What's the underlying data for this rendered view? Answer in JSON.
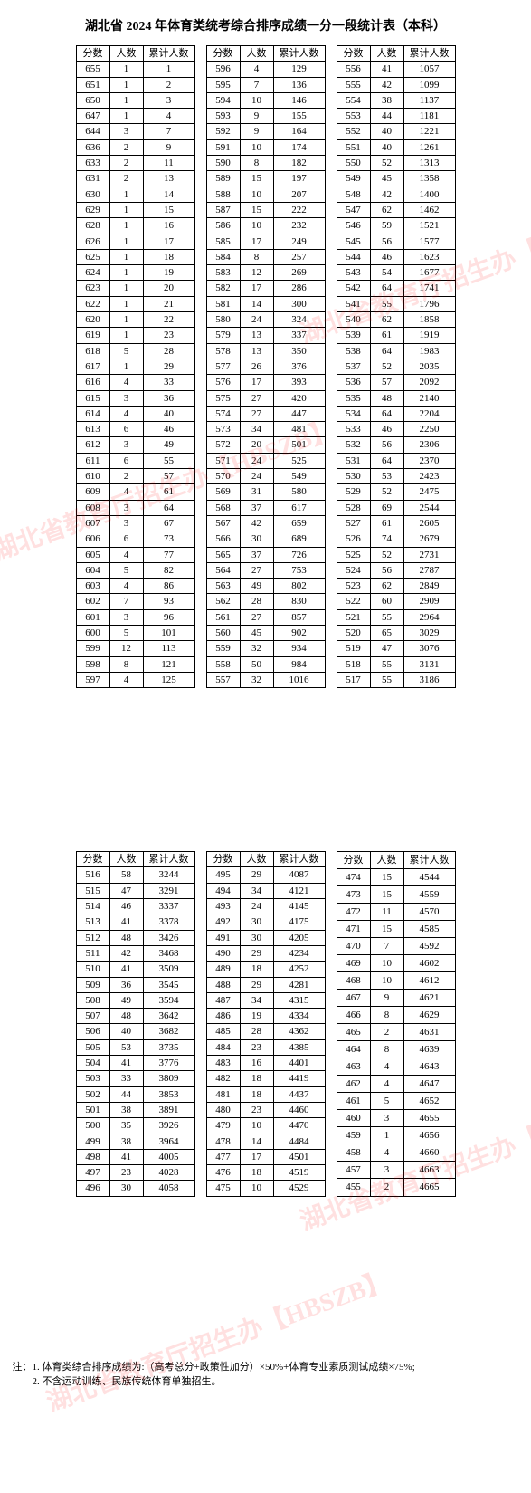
{
  "title": "湖北省 2024 年体育类统考综合排序成绩一分一段统计表（本科）",
  "headers": {
    "score": "分数",
    "count": "人数",
    "cum": "累计人数"
  },
  "notes": [
    "注：1. 体育类综合排序成绩为:（高考总分+政策性加分）×50%+体育专业素质测试成绩×75%;",
    "　　2. 不含运动训练、民族传统体育单独招生。"
  ],
  "watermark": "湖北省教育厅招生办【HBSZB】",
  "tables": [
    [
      [
        655,
        1,
        1
      ],
      [
        651,
        1,
        2
      ],
      [
        650,
        1,
        3
      ],
      [
        647,
        1,
        4
      ],
      [
        644,
        3,
        7
      ],
      [
        636,
        2,
        9
      ],
      [
        633,
        2,
        11
      ],
      [
        631,
        2,
        13
      ],
      [
        630,
        1,
        14
      ],
      [
        629,
        1,
        15
      ],
      [
        628,
        1,
        16
      ],
      [
        626,
        1,
        17
      ],
      [
        625,
        1,
        18
      ],
      [
        624,
        1,
        19
      ],
      [
        623,
        1,
        20
      ],
      [
        622,
        1,
        21
      ],
      [
        620,
        1,
        22
      ],
      [
        619,
        1,
        23
      ],
      [
        618,
        5,
        28
      ],
      [
        617,
        1,
        29
      ],
      [
        616,
        4,
        33
      ],
      [
        615,
        3,
        36
      ],
      [
        614,
        4,
        40
      ],
      [
        613,
        6,
        46
      ],
      [
        612,
        3,
        49
      ],
      [
        611,
        6,
        55
      ],
      [
        610,
        2,
        57
      ],
      [
        609,
        4,
        61
      ],
      [
        608,
        3,
        64
      ],
      [
        607,
        3,
        67
      ],
      [
        606,
        6,
        73
      ],
      [
        605,
        4,
        77
      ],
      [
        604,
        5,
        82
      ],
      [
        603,
        4,
        86
      ],
      [
        602,
        7,
        93
      ],
      [
        601,
        3,
        96
      ],
      [
        600,
        5,
        101
      ],
      [
        599,
        12,
        113
      ],
      [
        598,
        8,
        121
      ],
      [
        597,
        4,
        125
      ]
    ],
    [
      [
        596,
        4,
        129
      ],
      [
        595,
        7,
        136
      ],
      [
        594,
        10,
        146
      ],
      [
        593,
        9,
        155
      ],
      [
        592,
        9,
        164
      ],
      [
        591,
        10,
        174
      ],
      [
        590,
        8,
        182
      ],
      [
        589,
        15,
        197
      ],
      [
        588,
        10,
        207
      ],
      [
        587,
        15,
        222
      ],
      [
        586,
        10,
        232
      ],
      [
        585,
        17,
        249
      ],
      [
        584,
        8,
        257
      ],
      [
        583,
        12,
        269
      ],
      [
        582,
        17,
        286
      ],
      [
        581,
        14,
        300
      ],
      [
        580,
        24,
        324
      ],
      [
        579,
        13,
        337
      ],
      [
        578,
        13,
        350
      ],
      [
        577,
        26,
        376
      ],
      [
        576,
        17,
        393
      ],
      [
        575,
        27,
        420
      ],
      [
        574,
        27,
        447
      ],
      [
        573,
        34,
        481
      ],
      [
        572,
        20,
        501
      ],
      [
        571,
        24,
        525
      ],
      [
        570,
        24,
        549
      ],
      [
        569,
        31,
        580
      ],
      [
        568,
        37,
        617
      ],
      [
        567,
        42,
        659
      ],
      [
        566,
        30,
        689
      ],
      [
        565,
        37,
        726
      ],
      [
        564,
        27,
        753
      ],
      [
        563,
        49,
        802
      ],
      [
        562,
        28,
        830
      ],
      [
        561,
        27,
        857
      ],
      [
        560,
        45,
        902
      ],
      [
        559,
        32,
        934
      ],
      [
        558,
        50,
        984
      ],
      [
        557,
        32,
        1016
      ]
    ],
    [
      [
        556,
        41,
        1057
      ],
      [
        555,
        42,
        1099
      ],
      [
        554,
        38,
        1137
      ],
      [
        553,
        44,
        1181
      ],
      [
        552,
        40,
        1221
      ],
      [
        551,
        40,
        1261
      ],
      [
        550,
        52,
        1313
      ],
      [
        549,
        45,
        1358
      ],
      [
        548,
        42,
        1400
      ],
      [
        547,
        62,
        1462
      ],
      [
        546,
        59,
        1521
      ],
      [
        545,
        56,
        1577
      ],
      [
        544,
        46,
        1623
      ],
      [
        543,
        54,
        1677
      ],
      [
        542,
        64,
        1741
      ],
      [
        541,
        55,
        1796
      ],
      [
        540,
        62,
        1858
      ],
      [
        539,
        61,
        1919
      ],
      [
        538,
        64,
        1983
      ],
      [
        537,
        52,
        2035
      ],
      [
        536,
        57,
        2092
      ],
      [
        535,
        48,
        2140
      ],
      [
        534,
        64,
        2204
      ],
      [
        533,
        46,
        2250
      ],
      [
        532,
        56,
        2306
      ],
      [
        531,
        64,
        2370
      ],
      [
        530,
        53,
        2423
      ],
      [
        529,
        52,
        2475
      ],
      [
        528,
        69,
        2544
      ],
      [
        527,
        61,
        2605
      ],
      [
        526,
        74,
        2679
      ],
      [
        525,
        52,
        2731
      ],
      [
        524,
        56,
        2787
      ],
      [
        523,
        62,
        2849
      ],
      [
        522,
        60,
        2909
      ],
      [
        521,
        55,
        2964
      ],
      [
        520,
        65,
        3029
      ],
      [
        519,
        47,
        3076
      ],
      [
        518,
        55,
        3131
      ],
      [
        517,
        55,
        3186
      ]
    ],
    [
      [
        516,
        58,
        3244
      ],
      [
        515,
        47,
        3291
      ],
      [
        514,
        46,
        3337
      ],
      [
        513,
        41,
        3378
      ],
      [
        512,
        48,
        3426
      ],
      [
        511,
        42,
        3468
      ],
      [
        510,
        41,
        3509
      ],
      [
        509,
        36,
        3545
      ],
      [
        508,
        49,
        3594
      ],
      [
        507,
        48,
        3642
      ],
      [
        506,
        40,
        3682
      ],
      [
        505,
        53,
        3735
      ],
      [
        504,
        41,
        3776
      ],
      [
        503,
        33,
        3809
      ],
      [
        502,
        44,
        3853
      ],
      [
        501,
        38,
        3891
      ],
      [
        500,
        35,
        3926
      ],
      [
        499,
        38,
        3964
      ],
      [
        498,
        41,
        4005
      ],
      [
        497,
        23,
        4028
      ],
      [
        496,
        30,
        4058
      ]
    ],
    [
      [
        495,
        29,
        4087
      ],
      [
        494,
        34,
        4121
      ],
      [
        493,
        24,
        4145
      ],
      [
        492,
        30,
        4175
      ],
      [
        491,
        30,
        4205
      ],
      [
        490,
        29,
        4234
      ],
      [
        489,
        18,
        4252
      ],
      [
        488,
        29,
        4281
      ],
      [
        487,
        34,
        4315
      ],
      [
        486,
        19,
        4334
      ],
      [
        485,
        28,
        4362
      ],
      [
        484,
        23,
        4385
      ],
      [
        483,
        16,
        4401
      ],
      [
        482,
        18,
        4419
      ],
      [
        481,
        18,
        4437
      ],
      [
        480,
        23,
        4460
      ],
      [
        479,
        10,
        4470
      ],
      [
        478,
        14,
        4484
      ],
      [
        477,
        17,
        4501
      ],
      [
        476,
        18,
        4519
      ],
      [
        475,
        10,
        4529
      ]
    ],
    [
      [
        474,
        15,
        4544
      ],
      [
        473,
        15,
        4559
      ],
      [
        472,
        11,
        4570
      ],
      [
        471,
        15,
        4585
      ],
      [
        470,
        7,
        4592
      ],
      [
        469,
        10,
        4602
      ],
      [
        468,
        10,
        4612
      ],
      [
        467,
        9,
        4621
      ],
      [
        466,
        8,
        4629
      ],
      [
        465,
        2,
        4631
      ],
      [
        464,
        8,
        4639
      ],
      [
        463,
        4,
        4643
      ],
      [
        462,
        4,
        4647
      ],
      [
        461,
        5,
        4652
      ],
      [
        460,
        3,
        4655
      ],
      [
        459,
        1,
        4656
      ],
      [
        458,
        4,
        4660
      ],
      [
        457,
        3,
        4663
      ],
      [
        455,
        2,
        4665
      ]
    ]
  ]
}
